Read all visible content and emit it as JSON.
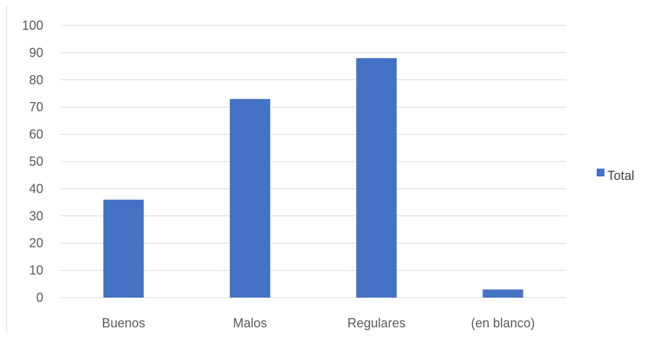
{
  "chart_data": {
    "type": "bar",
    "categories": [
      "Buenos",
      "Malos",
      "Regulares",
      "(en blanco)"
    ],
    "series": [
      {
        "name": "Total",
        "values": [
          36,
          73,
          88,
          3
        ],
        "color": "#4472c4"
      }
    ],
    "ylim": [
      0,
      100
    ],
    "yticks": [
      "0",
      "10",
      "20",
      "30",
      "40",
      "50",
      "60",
      "70",
      "80",
      "90",
      "100"
    ],
    "grid": true,
    "legend_position": "right"
  }
}
